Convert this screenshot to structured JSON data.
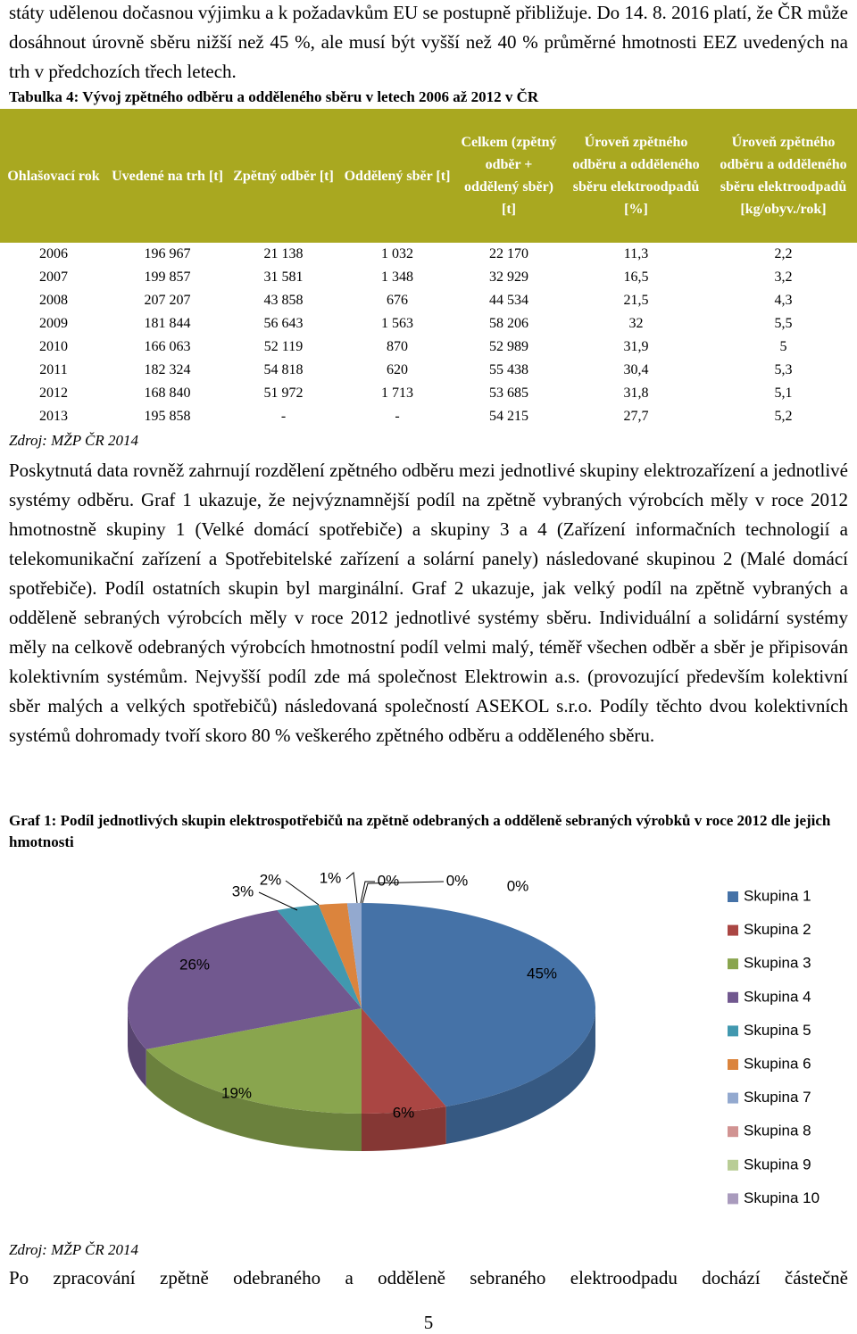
{
  "intro": "státy udělenou dočasnou výjimku a k požadavkům EU se postupně přibližuje. Do 14. 8. 2016 platí, že ČR může dosáhnout úrovně sběru nižší než 45 %, ale musí být vyšší než 40 % průměrné hmotnosti EEZ uvedených na trh v předchozích třech letech.",
  "table": {
    "caption": "Tabulka 4: Vývoj zpětného odběru a odděleného sběru v letech 2006 až 2012 v ČR",
    "headers": [
      "Ohlašovací rok",
      "Uvedené na trh [t]",
      "Zpětný odběr [t]",
      "Oddělený sběr [t]",
      "Celkem (zpětný odběr + oddělený sběr) [t]",
      "Úroveň zpětného odběru a odděleného sběru elektroodpadů [%]",
      "Úroveň zpětného odběru a odděleného sběru elektroodpadů [kg/obyv./rok]"
    ],
    "rows": [
      [
        "2006",
        "196 967",
        "21 138",
        "1 032",
        "22 170",
        "11,3",
        "2,2"
      ],
      [
        "2007",
        "199 857",
        "31 581",
        "1 348",
        "32 929",
        "16,5",
        "3,2"
      ],
      [
        "2008",
        "207 207",
        "43 858",
        "676",
        "44 534",
        "21,5",
        "4,3"
      ],
      [
        "2009",
        "181 844",
        "56 643",
        "1 563",
        "58 206",
        "32",
        "5,5"
      ],
      [
        "2010",
        "166 063",
        "52 119",
        "870",
        "52 989",
        "31,9",
        "5"
      ],
      [
        "2011",
        "182 324",
        "54 818",
        "620",
        "55 438",
        "30,4",
        "5,3"
      ],
      [
        "2012",
        "168 840",
        "51 972",
        "1 713",
        "53 685",
        "31,8",
        "5,1"
      ],
      [
        "2013",
        "195 858",
        "-",
        "-",
        "54 215",
        "27,7",
        "5,2"
      ]
    ],
    "source": "Zdroj: MŽP ČR 2014"
  },
  "paragraph": "Poskytnutá data rovněž zahrnují rozdělení zpětného odběru mezi jednotlivé skupiny elektrozařízení a jednotlivé systémy odběru. Graf 1 ukazuje, že nejvýznamnější podíl na zpětně vybraných výrobcích měly v roce 2012 hmotnostně skupiny 1 (Velké domácí spotřebiče) a skupiny 3 a 4 (Zařízení informačních technologií a telekomunikační zařízení a Spotřebitelské zařízení a solární panely) následované skupinou 2 (Malé domácí spotřebiče). Podíl ostatních skupin byl marginální. Graf 2 ukazuje, jak velký podíl na zpětně vybraných a odděleně sebraných výrobcích měly v roce 2012 jednotlivé systémy sběru. Individuální a solidární systémy měly na celkově odebraných výrobcích hmotnostní podíl velmi malý, téměř všechen odběr a sběr je připisován kolektivním systémům. Nejvyšší podíl zde má společnost Elektrowin a.s. (provozující především kolektivní sběr malých a velkých spotřebičů) následovaná společností ASEKOL s.r.o. Podíly těchto dvou kolektivních systémů dohromady tvoří skoro 80 % veškerého zpětného odběru a odděleného sběru.",
  "chart_data": {
    "type": "pie",
    "title": "Graf 1: Podíl jednotlivých skupin elektrospotřebičů na zpětně odebraných a odděleně sebraných výrobků v roce 2012 dle jejich hmotnosti",
    "categories": [
      "Skupina 1",
      "Skupina 2",
      "Skupina 3",
      "Skupina 4",
      "Skupina 5",
      "Skupina 6",
      "Skupina 7",
      "Skupina 8",
      "Skupina 9",
      "Skupina 10"
    ],
    "values": [
      45,
      6,
      19,
      26,
      3,
      2,
      1,
      0,
      0,
      0
    ],
    "value_labels": [
      "45%",
      "6%",
      "19%",
      "26%",
      "3%",
      "2%",
      "1%",
      "0%",
      "0%",
      "0%"
    ],
    "colors": [
      "#4572a7",
      "#aa4643",
      "#89a54e",
      "#71588f",
      "#4198af",
      "#db843d",
      "#93a9cf",
      "#d19392",
      "#b9cd96",
      "#a99bbd"
    ],
    "legend": "right"
  },
  "chart_source": "Zdroj: MŽP ČR 2014",
  "closing": "Po zpracování zpětně odebraného a odděleně sebraného elektroodpadu dochází částečně",
  "page_number": "5"
}
